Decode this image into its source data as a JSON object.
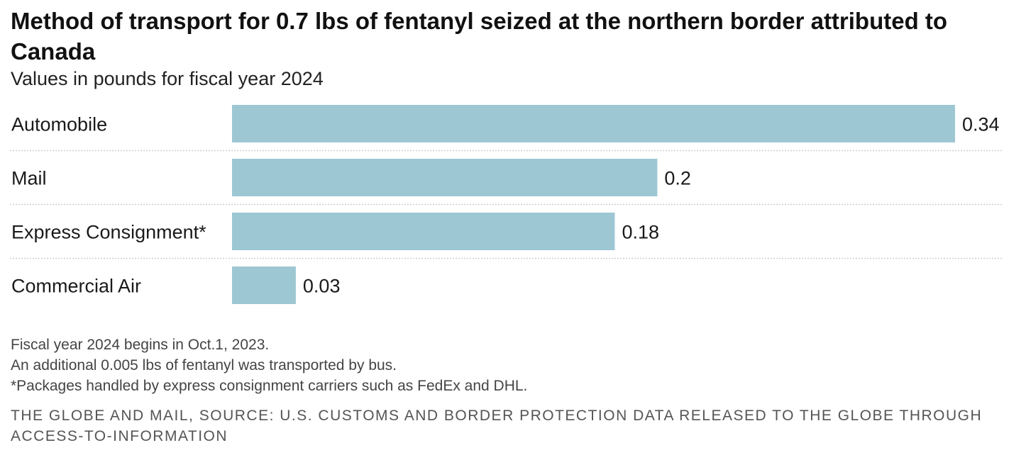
{
  "header": {
    "title": "Method of transport for 0.7 lbs of fentanyl seized at the northern border attributed to Canada",
    "subtitle": "Values in pounds for fiscal year 2024"
  },
  "chart_data": {
    "type": "bar",
    "orientation": "horizontal",
    "categories": [
      "Automobile",
      "Mail",
      "Express Consignment*",
      "Commercial Air"
    ],
    "values": [
      0.34,
      0.2,
      0.18,
      0.03
    ],
    "value_labels": [
      "0.34",
      "0.2",
      "0.18",
      "0.03"
    ],
    "xlim": [
      0,
      0.34
    ],
    "bar_color": "#9dc7d3",
    "separator_color": "#cfcfcf",
    "grid": false,
    "legend": "none"
  },
  "notes": [
    "Fiscal year 2024 begins in Oct.1, 2023.",
    "An additional 0.005 lbs of fentanyl was transported by bus.",
    "*Packages handled by express consignment carriers such as FedEx and DHL."
  ],
  "source": "THE GLOBE AND MAIL, SOURCE: U.S. CUSTOMS AND BORDER PROTECTION DATA RELEASED TO THE GLOBE THROUGH ACCESS-TO-INFORMATION"
}
